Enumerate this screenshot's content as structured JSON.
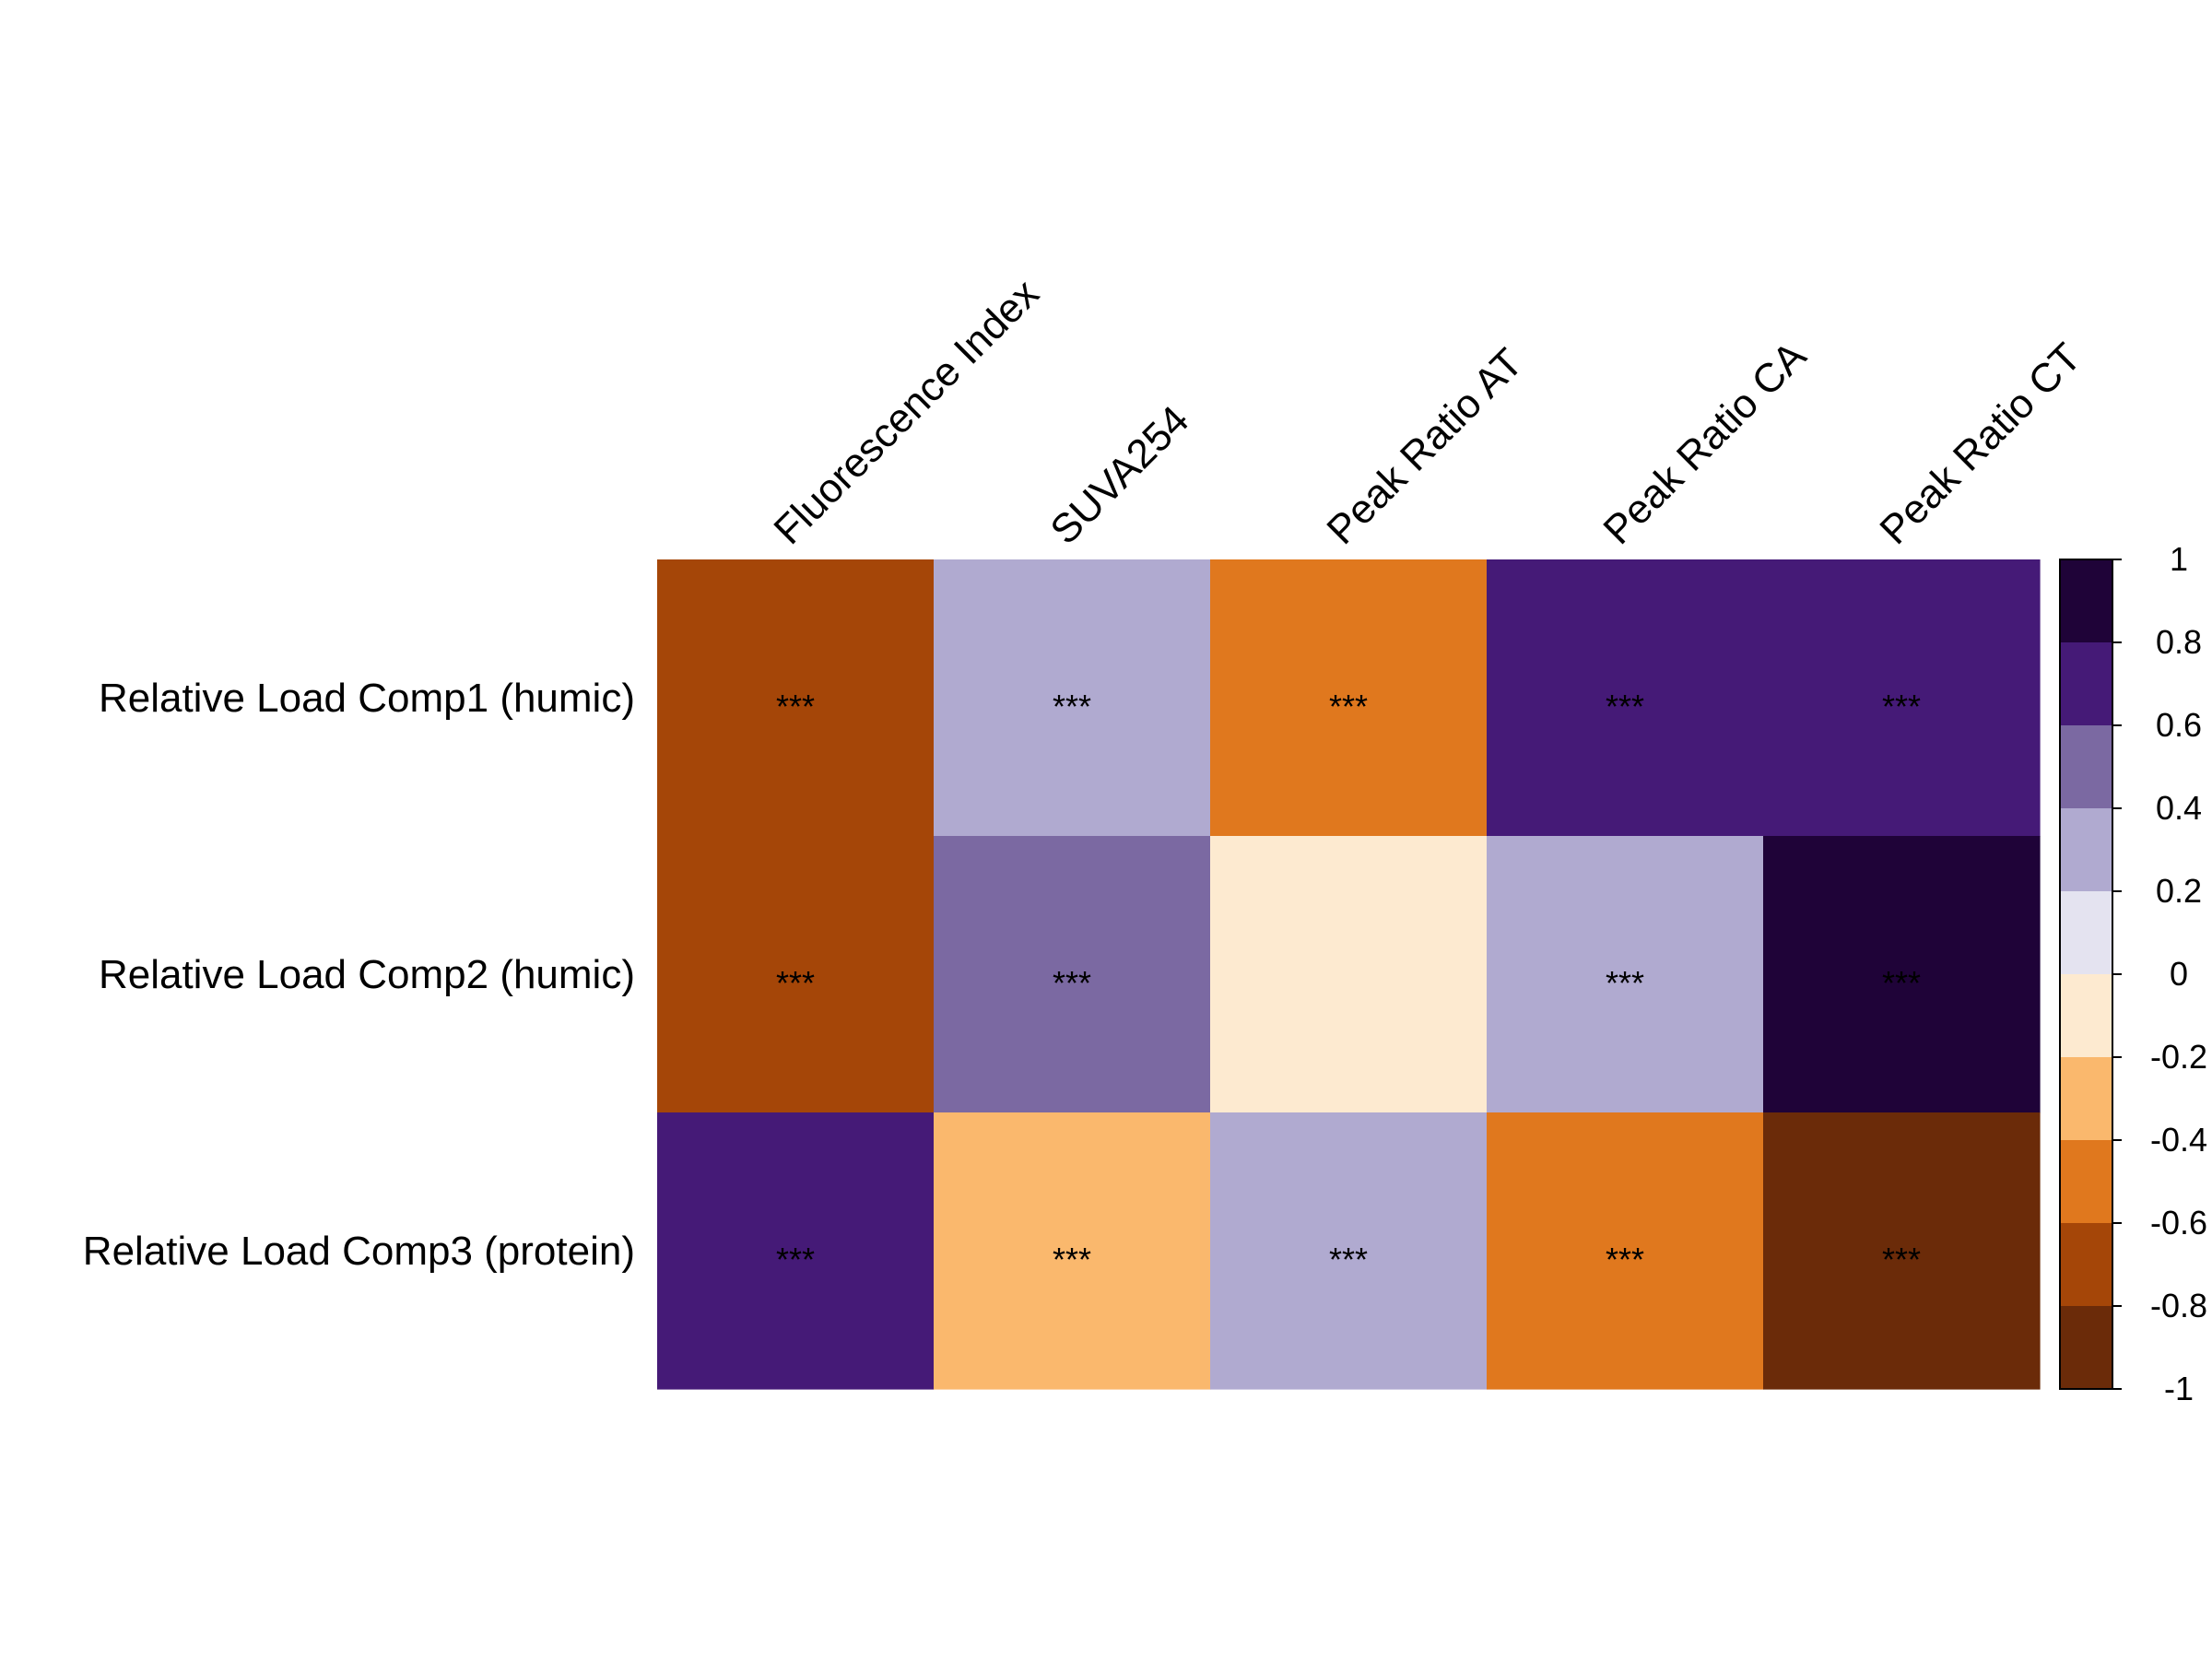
{
  "chart_data": {
    "type": "heatmap",
    "title": "",
    "rows": [
      "Relative Load Comp1 (humic)",
      "Relative Load Comp2 (humic)",
      "Relative Load Comp3 (protein)"
    ],
    "columns": [
      "Fluorescence Index",
      "SUVA254",
      "Peak Ratio AT",
      "Peak Ratio CA",
      "Peak Ratio CT"
    ],
    "values": [
      [
        -0.7,
        0.3,
        -0.5,
        0.7,
        0.7
      ],
      [
        -0.7,
        0.5,
        -0.1,
        0.3,
        0.9
      ],
      [
        0.7,
        -0.3,
        0.3,
        -0.5,
        -0.9
      ]
    ],
    "significance": [
      [
        "***",
        "***",
        "***",
        "***",
        "***"
      ],
      [
        "***",
        "***",
        "",
        "***",
        "***"
      ],
      [
        "***",
        "***",
        "***",
        "***",
        "***"
      ]
    ],
    "color_scale": {
      "range": [
        -1,
        1
      ],
      "ticks": [
        "1",
        "0.8",
        "0.6",
        "0.4",
        "0.2",
        "0",
        "-0.2",
        "-0.4",
        "-0.6",
        "-0.8",
        "-1"
      ],
      "bins_top_to_bottom": [
        "#1f0338",
        "#451a77",
        "#7b69a2",
        "#b0aad0",
        "#e4e3f0",
        "#fdead0",
        "#fab86d",
        "#e0781e",
        "#a54608",
        "#6b2b09"
      ]
    }
  }
}
